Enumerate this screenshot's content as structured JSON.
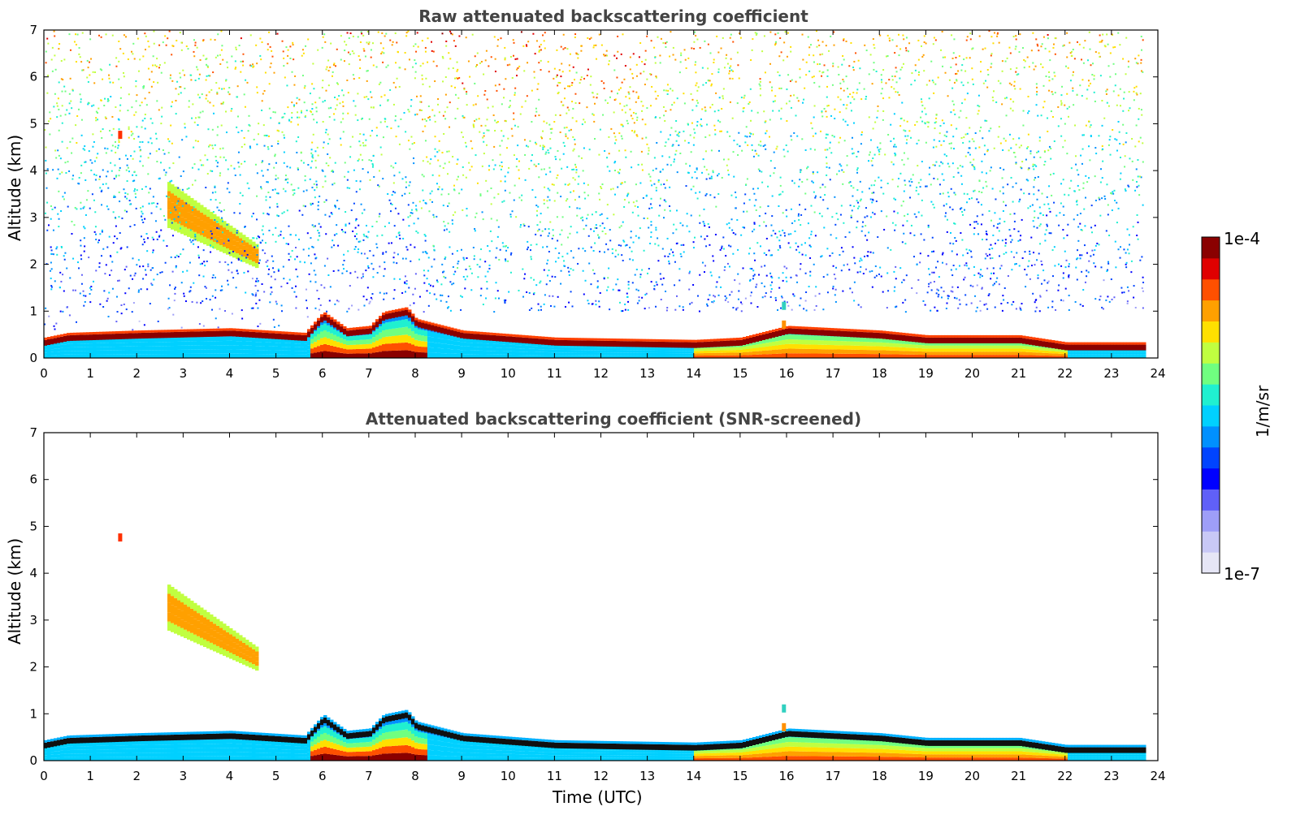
{
  "colors": {
    "jet": [
      "#e4e4f4",
      "#c8c8f4",
      "#a0a0f8",
      "#6a6af8",
      "#0000ff",
      "#0050ff",
      "#00a0ff",
      "#00e0f0",
      "#30ff c0",
      "#90ff70",
      "#e0ff30",
      "#ffd000",
      "#ff8000",
      "#ff2000",
      "#c00000",
      "#800000"
    ]
  },
  "chart_data": [
    {
      "type": "heatmap",
      "title": "Raw attenuated backscattering coefficient",
      "xlabel": "",
      "ylabel": "Altitude (km)",
      "xlim": [
        0,
        24
      ],
      "ylim": [
        0,
        7
      ],
      "xticks": [
        "0",
        "1",
        "2",
        "3",
        "4",
        "5",
        "6",
        "7",
        "8",
        "9",
        "10",
        "11",
        "12",
        "13",
        "14",
        "15",
        "16",
        "17",
        "18",
        "19",
        "20",
        "21",
        "22",
        "23",
        "24"
      ],
      "yticks": [
        "0",
        "1",
        "2",
        "3",
        "4",
        "5",
        "6",
        "7"
      ],
      "data_end_hour": 23.67,
      "features": {
        "boundary_layer_top_km": [
          [
            0,
            0.35
          ],
          [
            0.5,
            0.45
          ],
          [
            2,
            0.5
          ],
          [
            4,
            0.55
          ],
          [
            5.6,
            0.45
          ],
          [
            6,
            0.9
          ],
          [
            6.5,
            0.55
          ],
          [
            7,
            0.6
          ],
          [
            7.3,
            0.9
          ],
          [
            7.8,
            1.0
          ],
          [
            8,
            0.75
          ],
          [
            9,
            0.5
          ],
          [
            11,
            0.35
          ],
          [
            14,
            0.3
          ],
          [
            15,
            0.35
          ],
          [
            16,
            0.6
          ],
          [
            17,
            0.55
          ],
          [
            18,
            0.5
          ],
          [
            19,
            0.4
          ],
          [
            21,
            0.4
          ],
          [
            22,
            0.25
          ],
          [
            23.67,
            0.25
          ]
        ],
        "cloud_layer_km": {
          "time": [
            2.6,
            4.6
          ],
          "top_start": 3.8,
          "top_end": 2.4,
          "bottom_start": 2.8,
          "bottom_end": 1.9
        },
        "noise": "raw"
      }
    },
    {
      "type": "heatmap",
      "title": "Attenuated backscattering coefficient (SNR-screened)",
      "xlabel": "Time (UTC)",
      "ylabel": "Altitude (km)",
      "xlim": [
        0,
        24
      ],
      "ylim": [
        0,
        7
      ],
      "xticks": [
        "0",
        "1",
        "2",
        "3",
        "4",
        "5",
        "6",
        "7",
        "8",
        "9",
        "10",
        "11",
        "12",
        "13",
        "14",
        "15",
        "16",
        "17",
        "18",
        "19",
        "20",
        "21",
        "22",
        "23",
        "24"
      ],
      "yticks": [
        "0",
        "1",
        "2",
        "3",
        "4",
        "5",
        "6",
        "7"
      ],
      "data_end_hour": 23.67,
      "features": {
        "noise": "screened"
      }
    }
  ],
  "colorbar": {
    "max_label": "1e-4",
    "min_label": "1e-7",
    "unit": "1/m/sr",
    "scale": "log"
  }
}
